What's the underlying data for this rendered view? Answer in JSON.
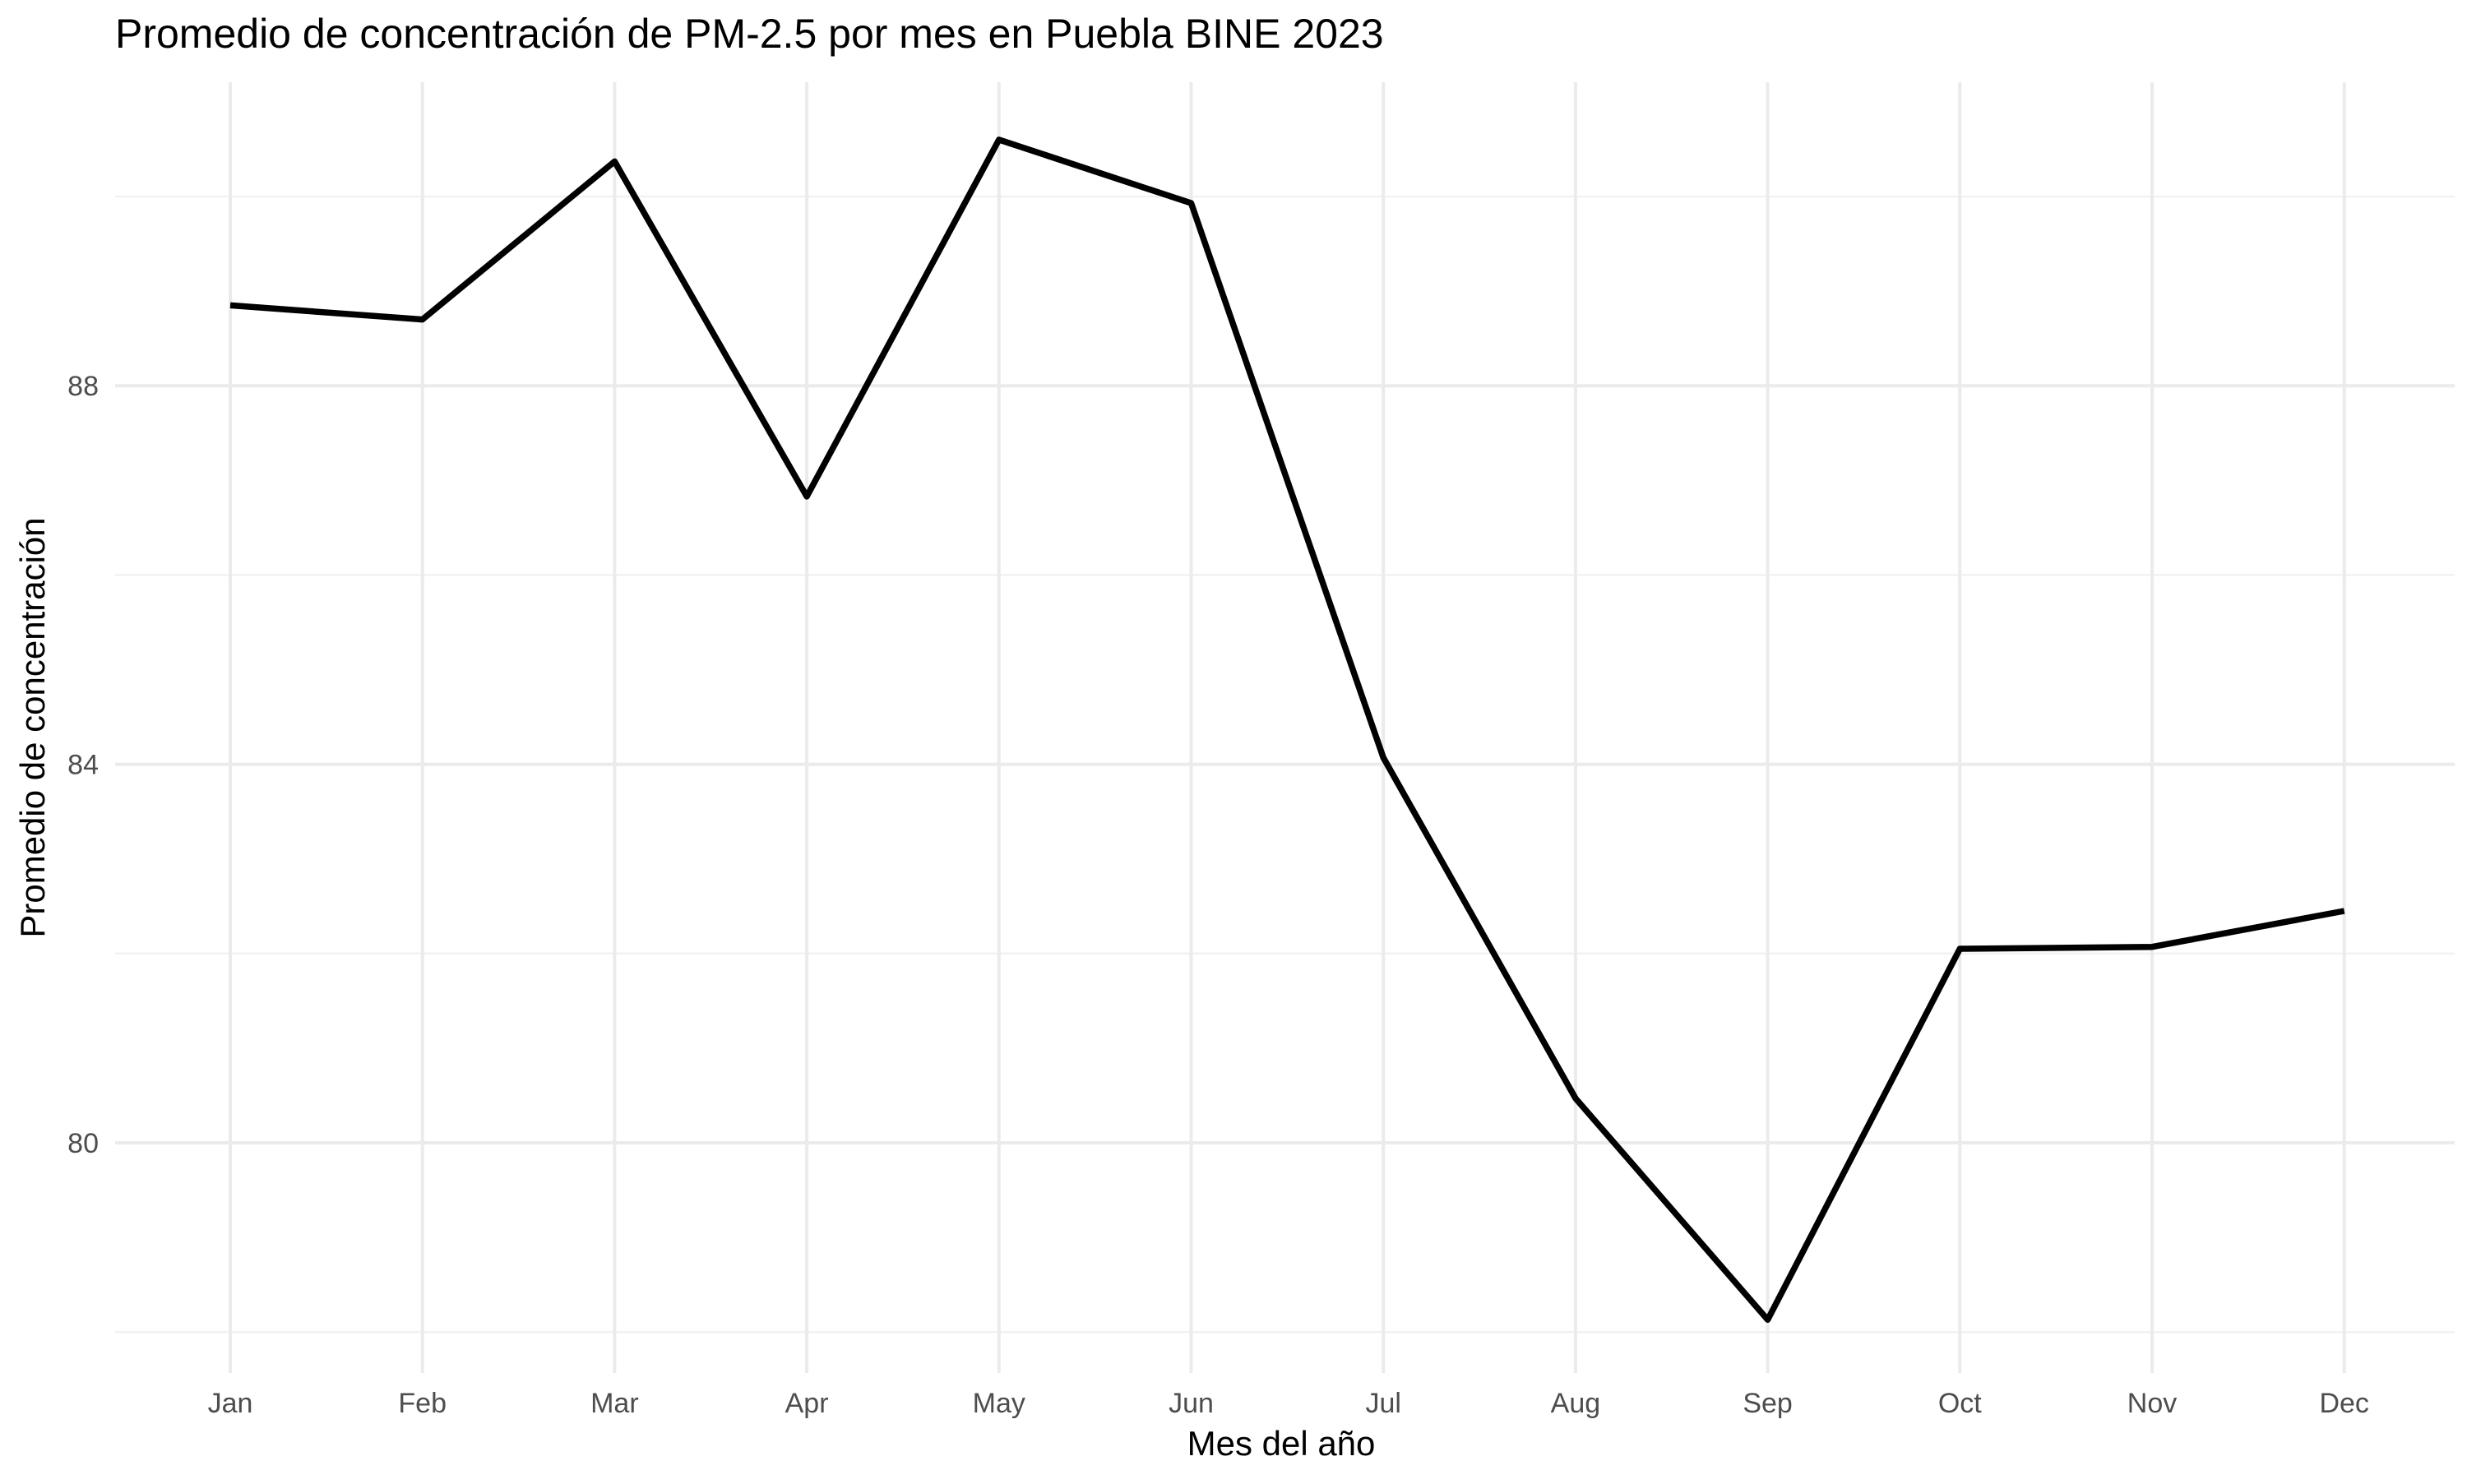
{
  "chart_data": {
    "type": "line",
    "title": "Promedio de concentración de PM-2.5 por mes en Puebla BINE 2023",
    "xlabel": "Mes del año",
    "ylabel": "Promedio de concentración",
    "categories": [
      "Jan",
      "Feb",
      "Mar",
      "Apr",
      "May",
      "Jun",
      "Jul",
      "Aug",
      "Sep",
      "Oct",
      "Nov",
      "Dec"
    ],
    "series": [
      {
        "values": [
          88.85,
          88.7,
          90.37,
          86.83,
          90.6,
          89.93,
          84.07,
          80.47,
          78.13,
          82.05,
          82.07,
          82.45
        ],
        "color": "#000000"
      }
    ],
    "yticks": [
      80,
      84,
      88
    ],
    "ylim": [
      77.6,
      91.55
    ],
    "grid": true,
    "legend": "none",
    "colors": {
      "background": "#ffffff",
      "grid_major": "#ebebeb",
      "grid_minor": "#f2f2f2",
      "tick_label": "#4d4d4d",
      "text": "#000000"
    }
  }
}
